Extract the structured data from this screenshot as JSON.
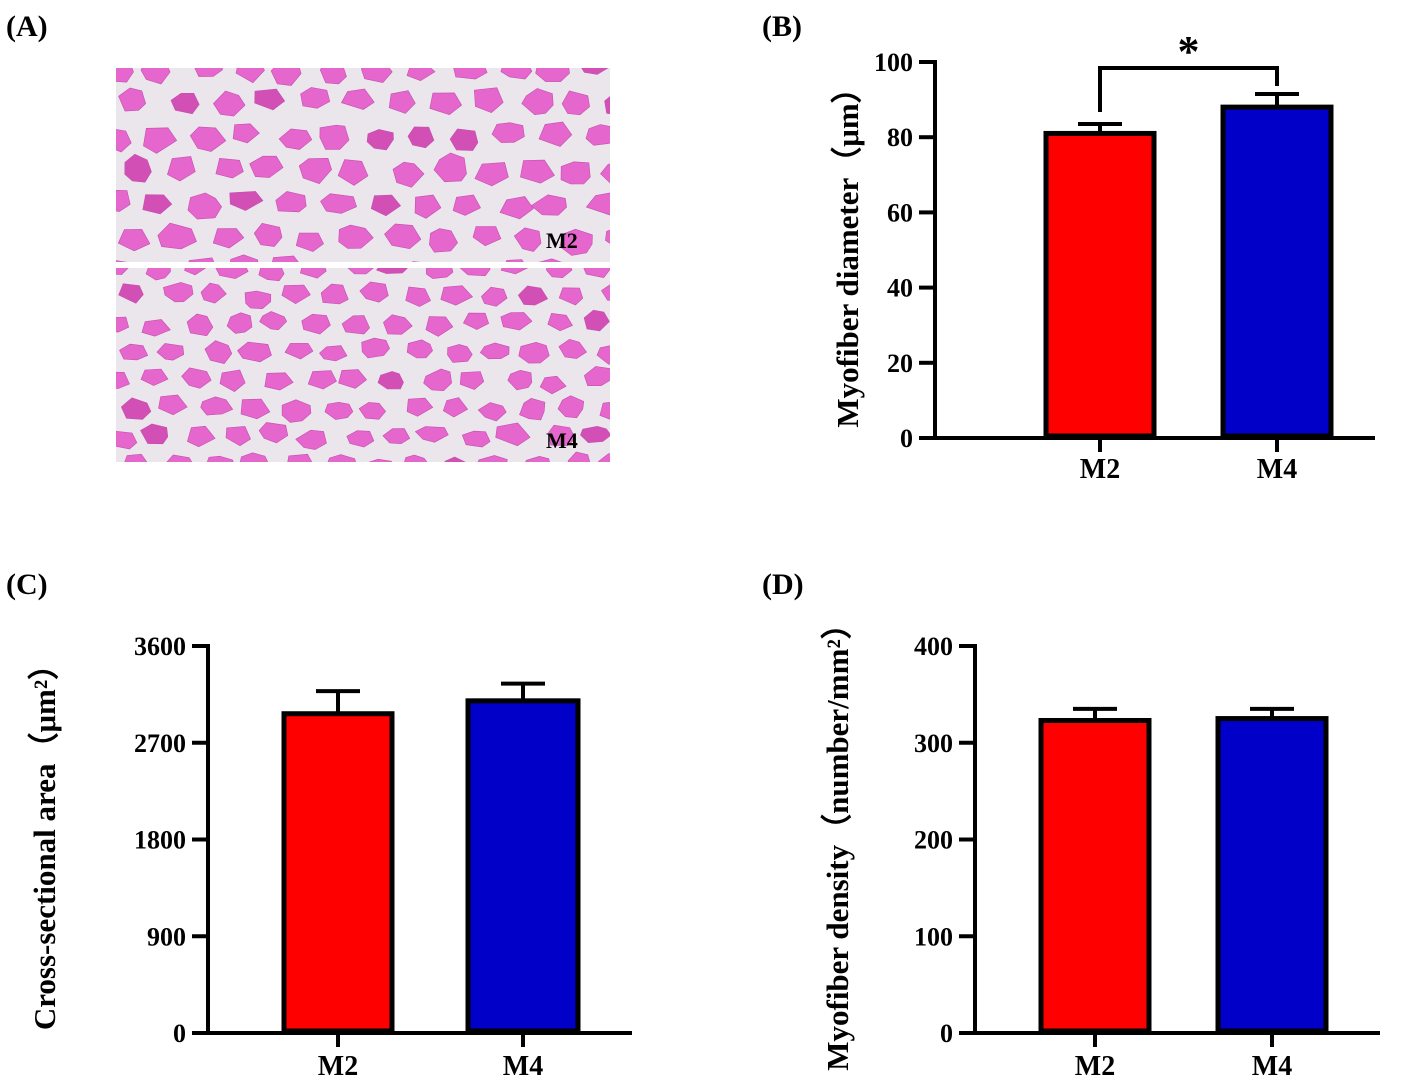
{
  "panels": {
    "a": "(A)",
    "b": "(B)",
    "c": "(C)",
    "d": "(D)"
  },
  "micrograph": {
    "top_label": "M2",
    "bottom_label": "M4",
    "colors": {
      "tissue": "#e566cc",
      "tissue_dark": "#d24fb6",
      "background": "#eae6ec"
    }
  },
  "colors": {
    "M2": "#ff0000",
    "M4": "#0000c8",
    "axis": "#000000"
  },
  "chart_data": [
    {
      "panel": "B",
      "type": "bar",
      "categories": [
        "M2",
        "M4"
      ],
      "values": [
        81,
        88
      ],
      "errors": [
        2.5,
        3.5
      ],
      "ylabel": "Myofiber diameter（μm）",
      "ylim": [
        0,
        100
      ],
      "yticks": [
        "0",
        "20",
        "40",
        "60",
        "80",
        "100"
      ],
      "significance": {
        "between": [
          "M2",
          "M4"
        ],
        "mark": "*"
      }
    },
    {
      "panel": "C",
      "type": "bar",
      "categories": [
        "M2",
        "M4"
      ],
      "values": [
        2970,
        3090
      ],
      "errors": [
        210,
        160
      ],
      "ylabel": "Cross-sectional area（μm²）",
      "ylim": [
        0,
        3600
      ],
      "yticks": [
        "0",
        "900",
        "1800",
        "2700",
        "3600"
      ]
    },
    {
      "panel": "D",
      "type": "bar",
      "categories": [
        "M2",
        "M4"
      ],
      "values": [
        323,
        325
      ],
      "errors": [
        12,
        10
      ],
      "ylabel": "Myofiber density（number/mm²）",
      "ylim": [
        0,
        400
      ],
      "yticks": [
        "0",
        "100",
        "200",
        "300",
        "400"
      ]
    }
  ]
}
